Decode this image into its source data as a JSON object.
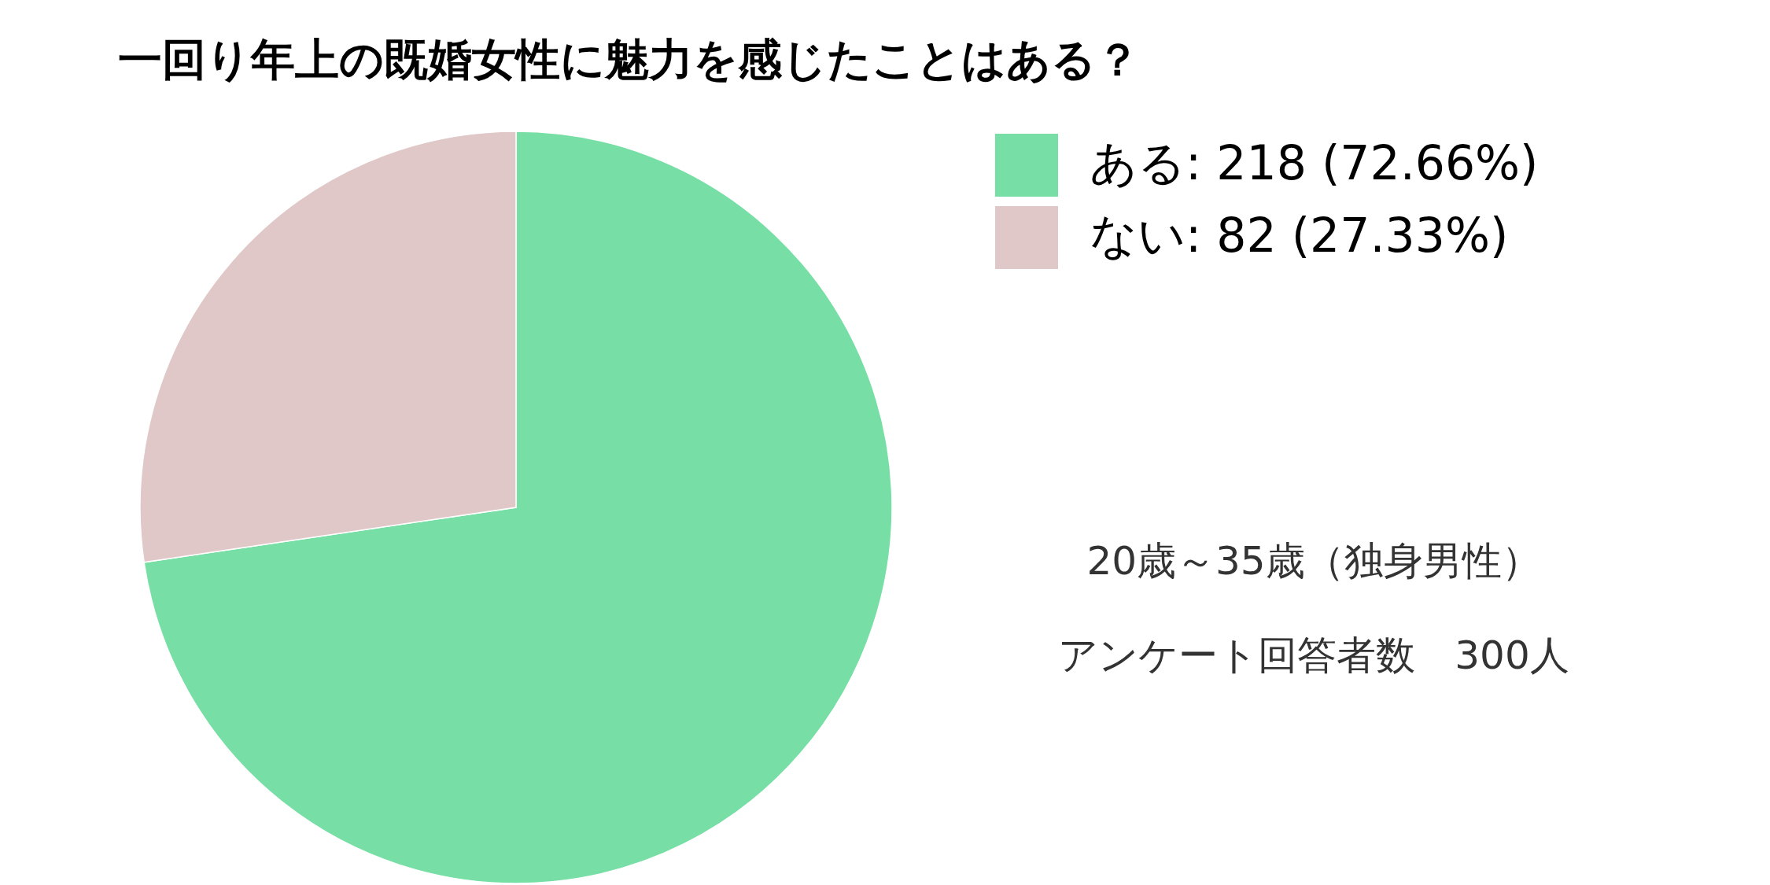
{
  "chart_data": {
    "type": "pie",
    "title": "一回り年上の既婚女性に魅力を感じたことはある？",
    "categories": [
      "ある: 218 (72.66%)",
      "ない: 82 (27.33%)"
    ],
    "values": [
      218,
      82
    ],
    "colors": [
      "#77dfa5",
      "#e0c8c8"
    ],
    "legend": "top right",
    "annotations": [
      "20歳～35歳（独身男性）",
      "アンケート回答者数　300人"
    ]
  }
}
